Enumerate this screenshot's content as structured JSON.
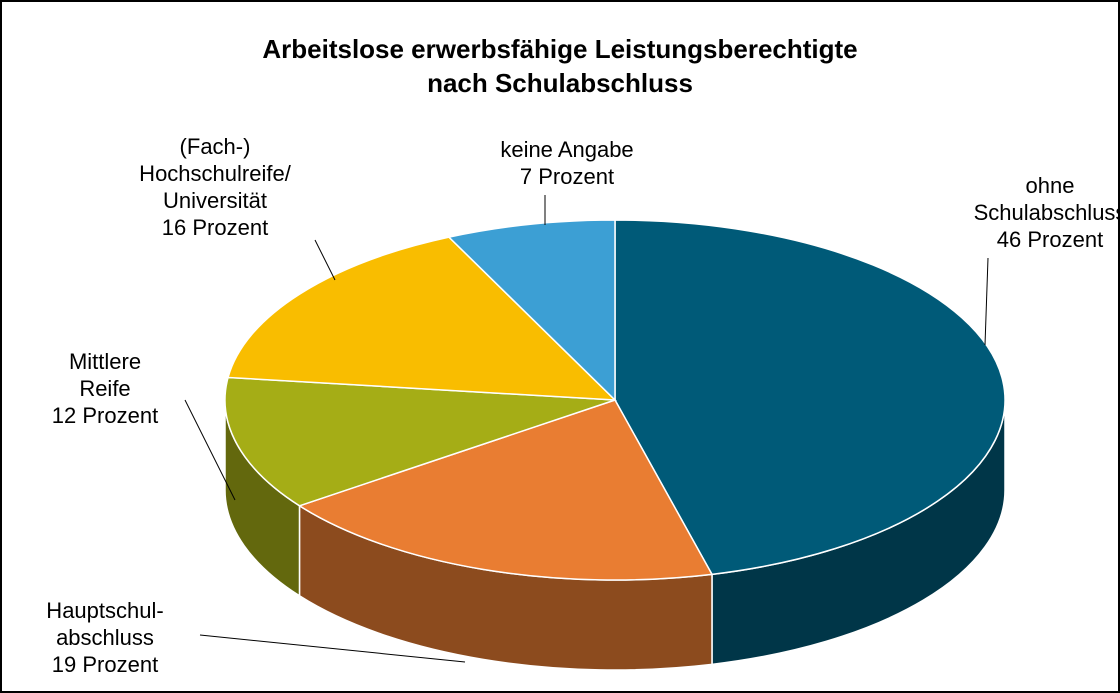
{
  "chart_data": {
    "type": "pie3d",
    "title": "Arbeitslose erwerbsfähige Leistungsberechtigte\nnach Schulabschluss",
    "categories": [
      "ohne\nSchulabschluss",
      "Hauptschul-\nabschluss",
      "Mittlere\nReife",
      "(Fach-)\nHochschulreife/\nUniversität",
      "keine Angabe"
    ],
    "values": [
      46,
      19,
      12,
      16,
      7
    ],
    "value_labels": [
      "46 Prozent",
      "19 Prozent",
      "12 Prozent",
      "16 Prozent",
      "7 Prozent"
    ],
    "colors": [
      "#005a78",
      "#e97d32",
      "#a5ad16",
      "#f9bd00",
      "#3c9fd4"
    ]
  }
}
